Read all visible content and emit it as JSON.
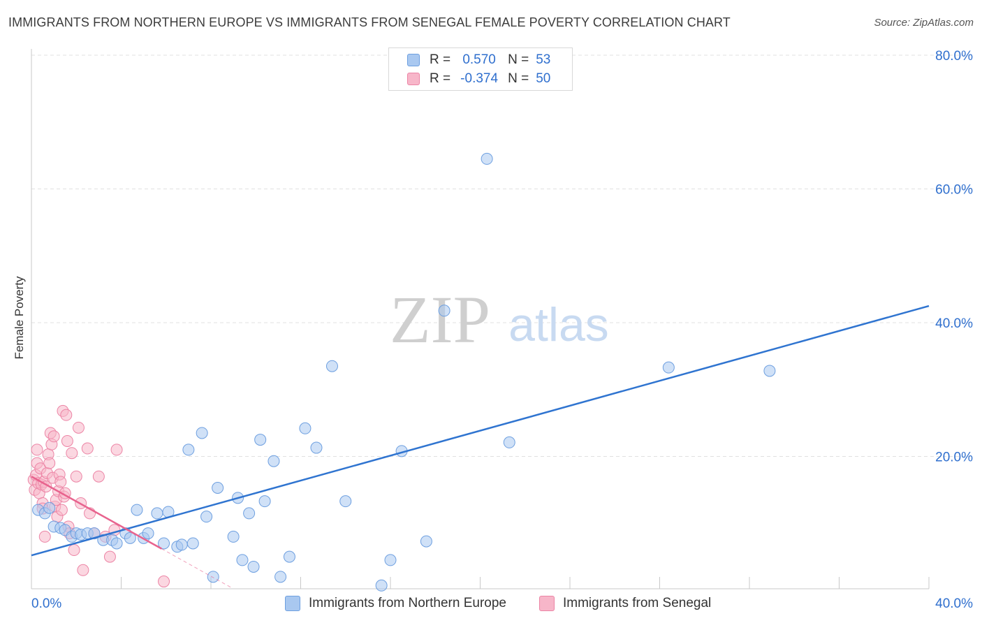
{
  "header": {
    "title": "IMMIGRANTS FROM NORTHERN EUROPE VS IMMIGRANTS FROM SENEGAL FEMALE POVERTY CORRELATION CHART",
    "source": "Source: ZipAtlas.com"
  },
  "watermark": {
    "zip": "ZIP",
    "atlas": "atlas"
  },
  "colors": {
    "blue_fill": "#a9c8f0",
    "blue_stroke": "#6d9fe0",
    "blue_line": "#2f74d0",
    "pink_fill": "#f7b6c9",
    "pink_stroke": "#ec84a5",
    "pink_line": "#e8638e",
    "axis_label": "#2f6fce",
    "grid": "#e0e0e0"
  },
  "legend": {
    "r_label": "R =",
    "n_label": "N =",
    "series1": {
      "r": "0.570",
      "n": "53"
    },
    "series2": {
      "r": "-0.374",
      "n": "50"
    }
  },
  "bottom_legend": {
    "series1": "Immigrants from Northern Europe",
    "series2": "Immigrants from Senegal"
  },
  "chart_data": {
    "type": "scatter",
    "title": "IMMIGRANTS FROM NORTHERN EUROPE VS IMMIGRANTS FROM SENEGAL FEMALE POVERTY CORRELATION CHART",
    "xlabel": "",
    "ylabel": "Female Poverty",
    "xlim": [
      0,
      40
    ],
    "ylim": [
      0,
      80
    ],
    "x_tick_labels": [
      "0.0%",
      "40.0%"
    ],
    "y_ticks": [
      20,
      40,
      60,
      80
    ],
    "y_tick_labels": [
      "20.0%",
      "40.0%",
      "60.0%",
      "80.0%"
    ],
    "legend_position": "top-center",
    "series": [
      {
        "name": "Immigrants from Northern Europe",
        "r": 0.57,
        "n": 53,
        "trend": {
          "x": [
            0,
            40
          ],
          "y": [
            5.2,
            42.5
          ]
        },
        "points": [
          [
            0.3,
            12.0
          ],
          [
            0.6,
            11.5
          ],
          [
            0.8,
            12.3
          ],
          [
            1.0,
            9.5
          ],
          [
            1.3,
            9.3
          ],
          [
            1.5,
            9.0
          ],
          [
            1.8,
            8.0
          ],
          [
            2.0,
            8.5
          ],
          [
            2.2,
            8.3
          ],
          [
            2.5,
            8.5
          ],
          [
            2.8,
            8.5
          ],
          [
            3.2,
            7.5
          ],
          [
            3.6,
            7.5
          ],
          [
            3.8,
            7.0
          ],
          [
            4.2,
            8.5
          ],
          [
            4.4,
            7.8
          ],
          [
            4.7,
            12.0
          ],
          [
            5.0,
            7.8
          ],
          [
            5.2,
            8.5
          ],
          [
            5.6,
            11.5
          ],
          [
            5.9,
            7.0
          ],
          [
            6.1,
            11.7
          ],
          [
            6.5,
            6.5
          ],
          [
            6.7,
            6.8
          ],
          [
            7.2,
            7.0
          ],
          [
            7.0,
            21.0
          ],
          [
            7.6,
            23.5
          ],
          [
            7.8,
            11.0
          ],
          [
            8.1,
            2.0
          ],
          [
            8.3,
            15.3
          ],
          [
            9.0,
            8.0
          ],
          [
            9.2,
            13.8
          ],
          [
            9.4,
            4.5
          ],
          [
            9.7,
            11.5
          ],
          [
            9.9,
            3.5
          ],
          [
            10.2,
            22.5
          ],
          [
            10.4,
            13.3
          ],
          [
            10.8,
            19.3
          ],
          [
            11.1,
            2.0
          ],
          [
            11.5,
            5.0
          ],
          [
            12.2,
            24.2
          ],
          [
            12.7,
            21.3
          ],
          [
            13.4,
            33.5
          ],
          [
            14.0,
            13.3
          ],
          [
            15.6,
            0.7
          ],
          [
            16.0,
            4.5
          ],
          [
            16.5,
            20.8
          ],
          [
            17.6,
            7.3
          ],
          [
            18.4,
            41.8
          ],
          [
            20.3,
            64.5
          ],
          [
            21.3,
            22.1
          ],
          [
            28.4,
            33.3
          ],
          [
            32.9,
            32.8
          ]
        ]
      },
      {
        "name": "Immigrants from Senegal",
        "r": -0.374,
        "n": 50,
        "trend": {
          "x": [
            0,
            5.8
          ],
          "y": [
            17.0,
            6.2
          ]
        },
        "trend_dashed": {
          "x": [
            5.8,
            8.9
          ],
          "y": [
            6.2,
            0.4
          ]
        },
        "points": [
          [
            0.1,
            16.5
          ],
          [
            0.15,
            15.0
          ],
          [
            0.2,
            17.2
          ],
          [
            0.25,
            19.0
          ],
          [
            0.25,
            21.0
          ],
          [
            0.3,
            16.0
          ],
          [
            0.35,
            14.5
          ],
          [
            0.4,
            18.2
          ],
          [
            0.45,
            15.8
          ],
          [
            0.5,
            13.0
          ],
          [
            0.5,
            12.2
          ],
          [
            0.55,
            16.2
          ],
          [
            0.6,
            8.0
          ],
          [
            0.65,
            15.5
          ],
          [
            0.7,
            17.5
          ],
          [
            0.75,
            20.3
          ],
          [
            0.8,
            19.0
          ],
          [
            0.85,
            23.5
          ],
          [
            0.9,
            21.8
          ],
          [
            0.95,
            16.8
          ],
          [
            1.0,
            23.0
          ],
          [
            1.05,
            12.5
          ],
          [
            1.1,
            13.5
          ],
          [
            1.15,
            11.0
          ],
          [
            1.2,
            14.8
          ],
          [
            1.25,
            17.3
          ],
          [
            1.3,
            16.2
          ],
          [
            1.35,
            12.0
          ],
          [
            1.4,
            26.8
          ],
          [
            1.45,
            14.0
          ],
          [
            1.5,
            14.5
          ],
          [
            1.55,
            26.2
          ],
          [
            1.6,
            22.3
          ],
          [
            1.65,
            9.5
          ],
          [
            1.7,
            8.5
          ],
          [
            1.8,
            20.5
          ],
          [
            1.9,
            6.0
          ],
          [
            2.0,
            17.0
          ],
          [
            2.1,
            24.3
          ],
          [
            2.2,
            13.0
          ],
          [
            2.3,
            3.0
          ],
          [
            2.5,
            21.2
          ],
          [
            2.6,
            11.5
          ],
          [
            2.8,
            8.5
          ],
          [
            3.0,
            17.0
          ],
          [
            3.3,
            8.0
          ],
          [
            3.5,
            5.0
          ],
          [
            3.7,
            9.0
          ],
          [
            3.8,
            21.0
          ],
          [
            5.9,
            1.3
          ]
        ]
      }
    ]
  }
}
